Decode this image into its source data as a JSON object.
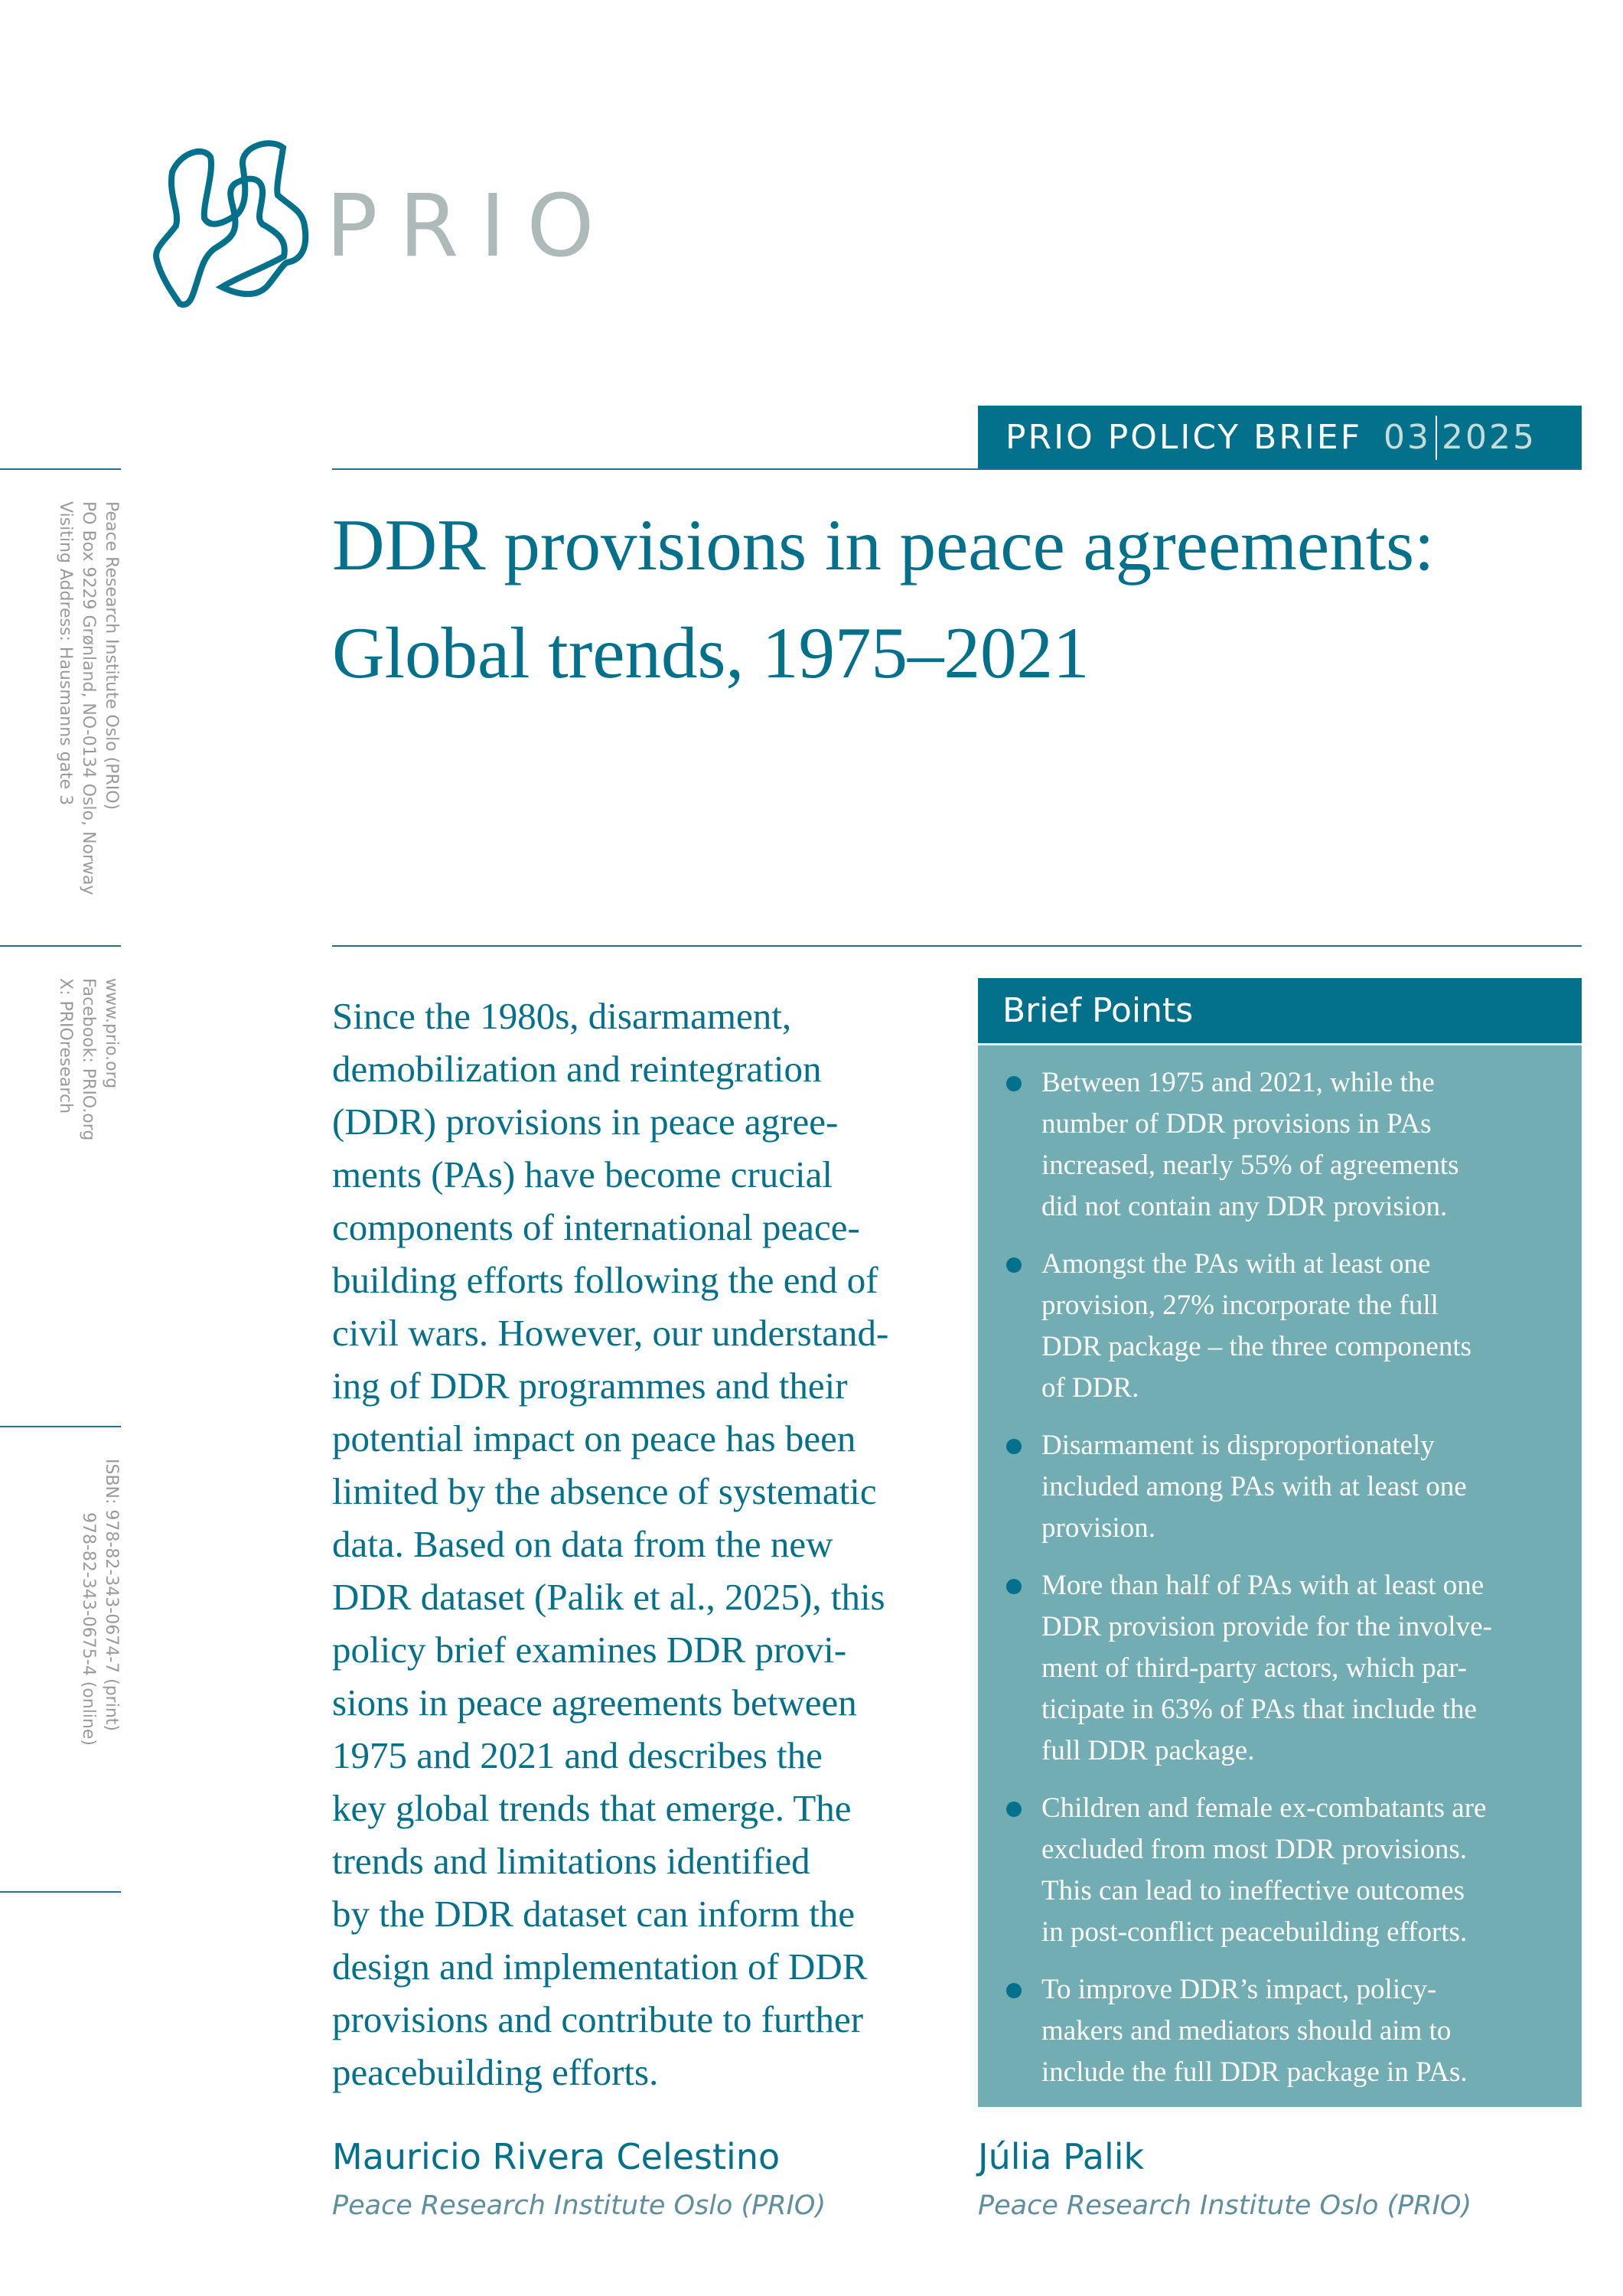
{
  "colors": {
    "brand_teal": "#03708c",
    "box_teal": "#72adb4",
    "logo_gray": "#aebab9",
    "number_tint": "#c7dcd6"
  },
  "logo": {
    "icon": "prio-knot-logo-icon",
    "text": "PRIO"
  },
  "banner": {
    "series": "PRIO POLICY BRIEF",
    "issue": "03",
    "year": "2025"
  },
  "title": {
    "lines": [
      "DDR provisions in peace agreements:",
      "Global trends, 1975–2021"
    ]
  },
  "sidebar": {
    "address": [
      "Peace Research Institute Oslo (PRIO)",
      "PO Box 9229 Grønland, NO-0134 Oslo, Norway",
      "Visiting Address: Hausmanns gate 3"
    ],
    "web": [
      "www.prio.org",
      "Facebook: PRIO.org",
      "X: PRIOresearch"
    ],
    "isbn": [
      "ISBN: 978-82-343-0674-7 (print)",
      "978-82-343-0675-4 (online)"
    ]
  },
  "summary": {
    "lines": [
      "Since the 1980s, disarmament,",
      "demobilization and reintegration",
      "(DDR) provisions in peace agree-",
      "ments (PAs) have become crucial",
      "components of international peace-",
      "building efforts following the end of",
      "civil wars. However, our understand-",
      "ing of DDR programmes and their",
      "potential impact on peace has been",
      "limited by the absence of systematic",
      "data. Based on data from the new",
      "DDR dataset (Palik et al., 2025), this",
      "policy brief examines DDR provi-",
      "sions in peace agreements between",
      "1975 and 2021 and describes the",
      "key global trends that emerge. The",
      "trends and limitations identified",
      "by the DDR dataset can inform the",
      "design and implementation of DDR",
      "provisions and contribute to further",
      "peacebuilding efforts."
    ]
  },
  "brief_points": {
    "heading": "Brief Points",
    "items": [
      [
        "Between 1975 and 2021, while the",
        "number of DDR provisions in PAs",
        "increased, nearly 55% of agreements",
        "did not contain any DDR provision."
      ],
      [
        "Amongst the PAs with at least one",
        "provision, 27% incorporate the full",
        "DDR package – the three components",
        "of DDR."
      ],
      [
        "Disarmament is disproportionately",
        "included among PAs with at least one",
        "provision."
      ],
      [
        "More than half of PAs with at least one",
        "DDR provision provide for the involve-",
        "ment of third-party actors, which par-",
        "ticipate in 63% of PAs that include the",
        "full DDR package."
      ],
      [
        "Children and female ex-combatants are",
        "excluded from most DDR provisions.",
        "This can lead to ineffective outcomes",
        "in post-conflict peacebuilding efforts."
      ],
      [
        "To improve DDR’s impact, policy-",
        "makers and mediators should aim to",
        "include the full DDR package in PAs."
      ]
    ]
  },
  "authors": [
    {
      "name": "Mauricio Rivera Celestino",
      "affiliation": "Peace Research Institute Oslo (PRIO)"
    },
    {
      "name": "Júlia Palik",
      "affiliation": "Peace Research Institute Oslo (PRIO)"
    }
  ]
}
